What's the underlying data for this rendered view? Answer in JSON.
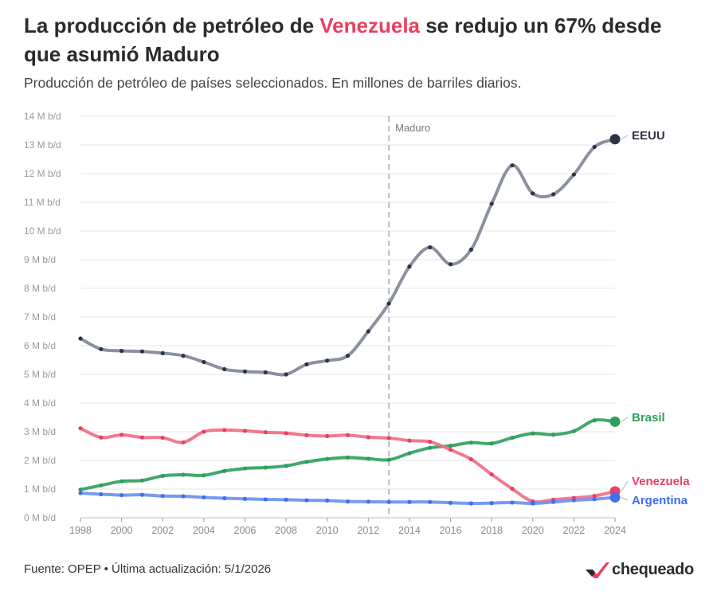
{
  "header": {
    "title_pre": "La producción de petróleo de ",
    "title_highlight": "Venezuela",
    "title_post": " se redujo un 67% desde que asumió Maduro",
    "subtitle": "Producción de petróleo de países seleccionados. En millones de barriles diarios."
  },
  "footer": {
    "source": "Fuente: OPEP • Última actualización: 5/1/2026",
    "logo_text": "chequeado"
  },
  "colors": {
    "highlight": "#e8415f",
    "logo_mark": "#e8415f"
  },
  "chart_data": {
    "type": "line",
    "x": [
      1998,
      1999,
      2000,
      2001,
      2002,
      2003,
      2004,
      2005,
      2006,
      2007,
      2008,
      2009,
      2010,
      2011,
      2012,
      2013,
      2014,
      2015,
      2016,
      2017,
      2018,
      2019,
      2020,
      2021,
      2022,
      2023,
      2024
    ],
    "xlim": [
      1998,
      2024
    ],
    "ylim": [
      0,
      14
    ],
    "x_ticks": [
      1998,
      2000,
      2002,
      2004,
      2006,
      2008,
      2010,
      2012,
      2014,
      2016,
      2018,
      2020,
      2022,
      2024
    ],
    "y_ticks": [
      0,
      1,
      2,
      3,
      4,
      5,
      6,
      7,
      8,
      9,
      10,
      11,
      12,
      13,
      14
    ],
    "y_tick_labels": [
      "0 M b/d",
      "1 M b/d",
      "2 M b/d",
      "3 M b/d",
      "4 M b/d",
      "5 M b/d",
      "6 M b/d",
      "7 M b/d",
      "8 M b/d",
      "9 M b/d",
      "10 M b/d",
      "11 M b/d",
      "12 M b/d",
      "13 M b/d",
      "14 M b/d"
    ],
    "grid": "horizontal",
    "annotations": [
      {
        "x": 2013,
        "label": "Maduro",
        "style": "dashed-vertical"
      }
    ],
    "series": [
      {
        "name": "EEUU",
        "color": "#7d8595",
        "end_color": "#2e3345",
        "values": [
          6.25,
          5.88,
          5.82,
          5.8,
          5.74,
          5.65,
          5.43,
          5.18,
          5.1,
          5.07,
          5.0,
          5.35,
          5.48,
          5.65,
          6.5,
          7.47,
          8.76,
          9.43,
          8.84,
          9.35,
          10.95,
          12.29,
          11.31,
          11.28,
          11.97,
          12.93,
          13.2
        ]
      },
      {
        "name": "Brasil",
        "color": "#2e9e5b",
        "end_color": "#2e9e5b",
        "values": [
          0.98,
          1.13,
          1.27,
          1.3,
          1.46,
          1.5,
          1.48,
          1.63,
          1.72,
          1.75,
          1.81,
          1.95,
          2.05,
          2.1,
          2.06,
          2.02,
          2.25,
          2.44,
          2.51,
          2.62,
          2.59,
          2.79,
          2.94,
          2.9,
          3.02,
          3.4,
          3.35
        ]
      },
      {
        "name": "Venezuela",
        "color": "#f06c82",
        "end_color": "#e8415f",
        "values": [
          3.12,
          2.8,
          2.89,
          2.8,
          2.79,
          2.63,
          3.0,
          3.06,
          3.03,
          2.98,
          2.95,
          2.88,
          2.85,
          2.88,
          2.81,
          2.78,
          2.69,
          2.65,
          2.37,
          2.04,
          1.51,
          1.01,
          0.57,
          0.63,
          0.69,
          0.76,
          0.92
        ]
      },
      {
        "name": "Argentina",
        "color": "#6b8ff0",
        "end_color": "#3f6ef0",
        "values": [
          0.86,
          0.82,
          0.79,
          0.8,
          0.76,
          0.75,
          0.71,
          0.68,
          0.66,
          0.64,
          0.63,
          0.61,
          0.6,
          0.57,
          0.56,
          0.55,
          0.55,
          0.55,
          0.52,
          0.5,
          0.51,
          0.53,
          0.5,
          0.55,
          0.61,
          0.65,
          0.71
        ]
      }
    ]
  }
}
